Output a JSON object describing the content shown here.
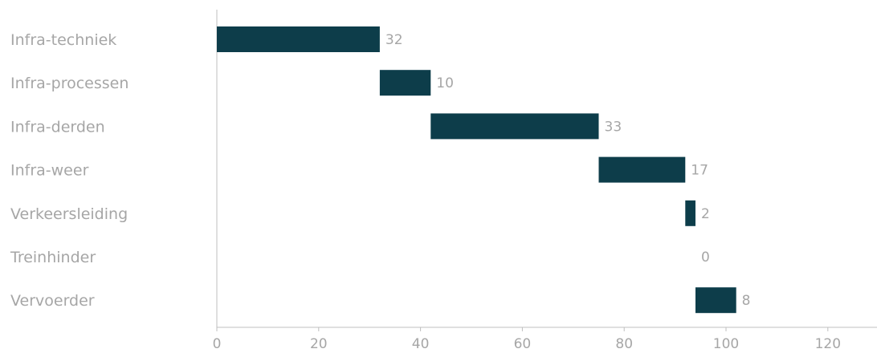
{
  "chart_data": {
    "type": "bar",
    "orientation": "horizontal",
    "layout": "waterfall",
    "categories": [
      "Infra-techniek",
      "Infra-processen",
      "Infra-derden",
      "Infra-weer",
      "Verkeersleiding",
      "Treinhinder",
      "Vervoerder"
    ],
    "values": [
      32,
      10,
      33,
      17,
      2,
      0,
      8
    ],
    "x_ticks": [
      0,
      20,
      40,
      60,
      80,
      100,
      120
    ],
    "xlim": [
      0,
      130
    ],
    "grid": false,
    "bar_color": "#0d3d4a",
    "text_color": "#a6a6a6",
    "axis_color": "#bfbfbf"
  }
}
